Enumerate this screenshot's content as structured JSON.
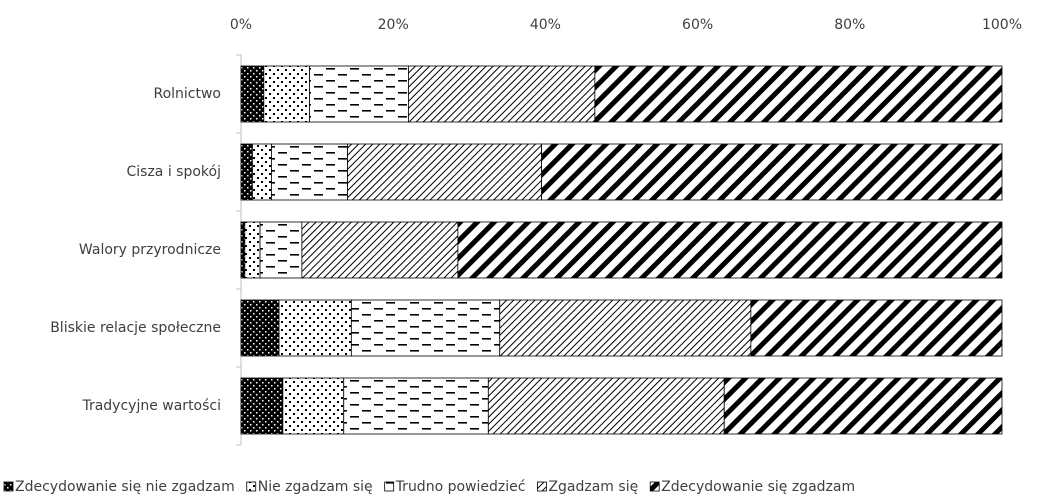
{
  "chart_data": {
    "type": "stacked-bar-horizontal",
    "categories": [
      "Rolnictwo",
      "Cisza i spokój",
      "Walory przyrodnicze",
      "Bliskie relacje społeczne",
      "Tradycyjne wartości"
    ],
    "series": [
      {
        "name": "Zdecydowanie się nie zgadzam",
        "color": "#000000",
        "values": [
          3,
          1.5,
          0.5,
          5,
          5.5
        ]
      },
      {
        "name": "Nie zgadzam się",
        "color": "#000000",
        "values": [
          6,
          2.5,
          2,
          9.5,
          8
        ]
      },
      {
        "name": "Trudno powiedzieć",
        "color": "#000000",
        "values": [
          13,
          10,
          5.5,
          19.5,
          19
        ]
      },
      {
        "name": "Zgadzam się",
        "color": "#000000",
        "values": [
          24.5,
          25.5,
          20.5,
          33,
          31
        ]
      },
      {
        "name": "Zdecydowanie się zgadzam",
        "color": "#000000",
        "values": [
          53.5,
          60.5,
          71.5,
          33,
          36.5
        ]
      }
    ],
    "xlim": [
      0,
      100
    ],
    "xticks": [
      {
        "value": 0,
        "label": "0%"
      },
      {
        "value": 20,
        "label": "20%"
      },
      {
        "value": 40,
        "label": "40%"
      },
      {
        "value": 60,
        "label": "60%"
      },
      {
        "value": 80,
        "label": "80%"
      },
      {
        "value": 100,
        "label": "100%"
      }
    ],
    "legend": "bottom"
  }
}
